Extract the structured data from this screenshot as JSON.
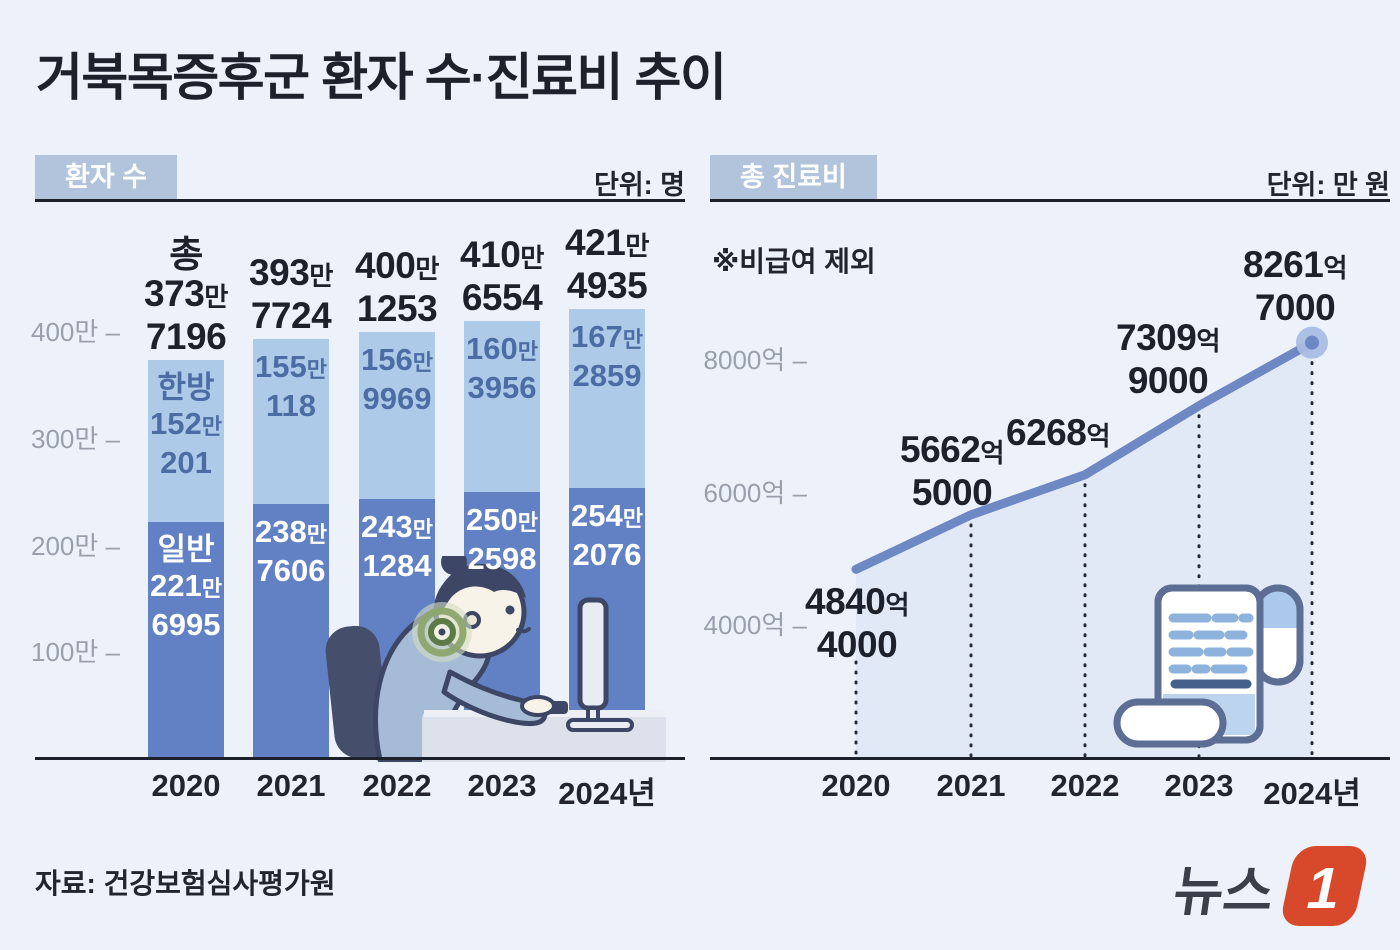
{
  "page": {
    "title": "거북목증후군 환자 수·진료비 추이",
    "source": "자료: 건강보험심사평가원",
    "logo": {
      "text": "뉴스",
      "numeral": "1",
      "accent_color": "#d8492b",
      "text_color": "#3a3f49"
    },
    "background_color": "#edf1fa"
  },
  "chart_data": [
    {
      "type": "bar",
      "title": "환자 수",
      "unit": "단위: 명",
      "categories": [
        "2020",
        "2021",
        "2022",
        "2023",
        "2024년"
      ],
      "stack_order_bottom_to_top": [
        "일반",
        "한방"
      ],
      "series": [
        {
          "name": "일반",
          "color": "#6280c4",
          "label_color": "#ffffff",
          "values": [
            2216995,
            2387606,
            2431284,
            2502598,
            2542076
          ],
          "value_labels": [
            [
              "일반",
              "221만",
              "6995"
            ],
            [
              "238만",
              "7606"
            ],
            [
              "243만",
              "1284"
            ],
            [
              "250만",
              "2598"
            ],
            [
              "254만",
              "2076"
            ]
          ]
        },
        {
          "name": "한방",
          "color": "#aecae9",
          "label_color": "#4c6da4",
          "values": [
            1520201,
            1550118,
            1569969,
            1603956,
            1672859
          ],
          "value_labels": [
            [
              "한방",
              "152만",
              "201"
            ],
            [
              "155만",
              "118"
            ],
            [
              "156만",
              "9969"
            ],
            [
              "160만",
              "3956"
            ],
            [
              "167만",
              "2859"
            ]
          ]
        }
      ],
      "totals": [
        3737196,
        3937724,
        4001253,
        4106554,
        4214935
      ],
      "total_labels": [
        [
          "총",
          "373만",
          "7196"
        ],
        [
          "393만",
          "7724"
        ],
        [
          "400만",
          "1253"
        ],
        [
          "410만",
          "6554"
        ],
        [
          "421만",
          "4935"
        ]
      ],
      "y_ticks": [
        {
          "label": "400만",
          "value": 4000000
        },
        {
          "label": "300만",
          "value": 3000000
        },
        {
          "label": "200만",
          "value": 2000000
        },
        {
          "label": "100만",
          "value": 1000000
        }
      ],
      "ylim": [
        0,
        4600000
      ],
      "grid": false
    },
    {
      "type": "line",
      "title": "총 진료비",
      "unit": "단위: 만 원",
      "note": "※비급여 제외",
      "categories": [
        "2020",
        "2021",
        "2022",
        "2023",
        "2024년"
      ],
      "values_eok": [
        4840.4,
        5662.5,
        6268,
        7309.9,
        8261.7
      ],
      "point_labels": [
        [
          "4840억",
          "4000"
        ],
        [
          "5662억",
          "5000"
        ],
        [
          "6268억"
        ],
        [
          "7309억",
          "9000"
        ],
        [
          "8261억",
          "7000"
        ]
      ],
      "y_ticks": [
        {
          "label": "8000억",
          "value": 8000
        },
        {
          "label": "6000억",
          "value": 6000
        },
        {
          "label": "4000억",
          "value": 4000
        }
      ],
      "ylim_eok": [
        2000,
        9000
      ],
      "grid": false,
      "line_color": "#6e88c4",
      "area_color": "#e2e9f6",
      "point_color": "#a9bce4",
      "dotted_guide_color": "#272b33"
    }
  ]
}
